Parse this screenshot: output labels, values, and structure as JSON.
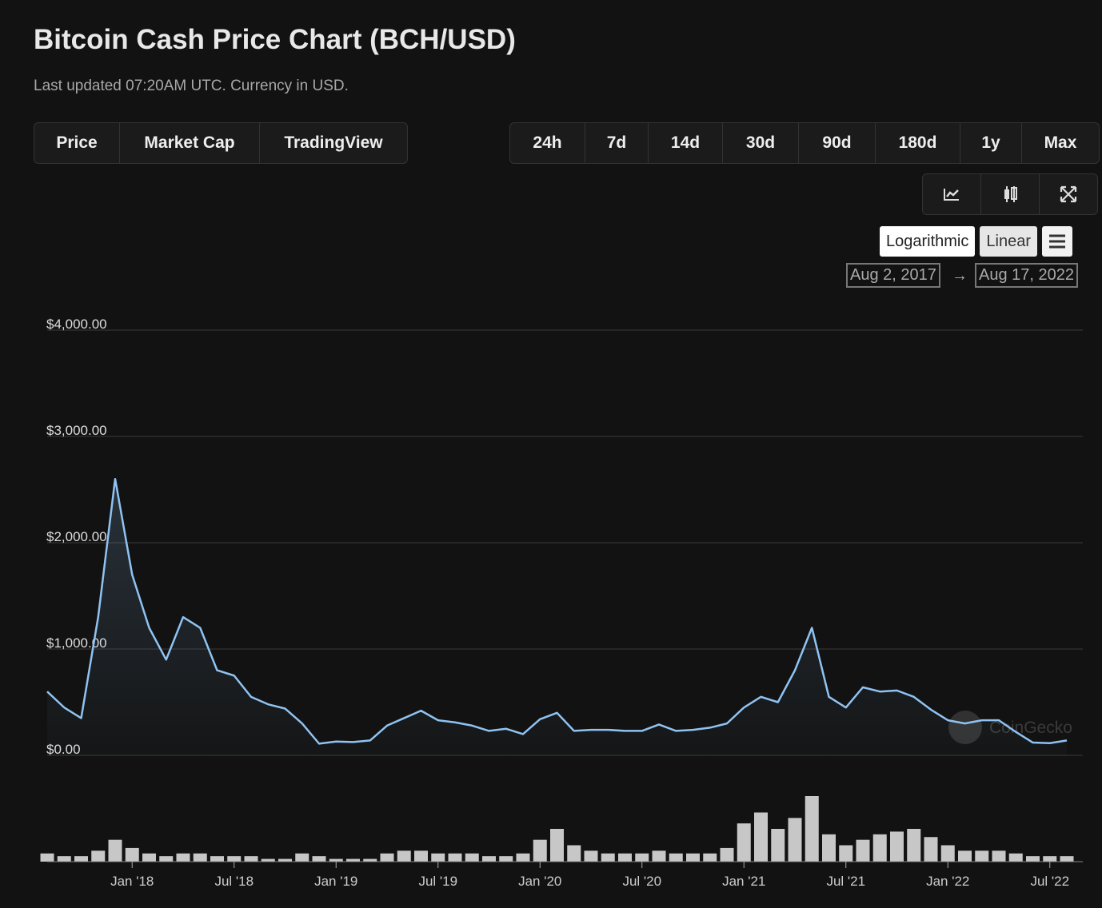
{
  "header": {
    "title": "Bitcoin Cash Price Chart (BCH/USD)",
    "subtitle": "Last updated 07:20AM UTC. Currency in USD."
  },
  "tabs": [
    "Price",
    "Market Cap",
    "TradingView"
  ],
  "ranges": [
    "24h",
    "7d",
    "14d",
    "30d",
    "90d",
    "180d",
    "1y",
    "Max"
  ],
  "scale_options": [
    "Logarithmic",
    "Linear"
  ],
  "date_range": {
    "from": "Aug 2, 2017",
    "to": "Aug 17, 2022"
  },
  "watermark": "CoinGecko",
  "chart_data": [
    {
      "type": "line",
      "color": "#8fc3f2",
      "x": [
        "2017-08",
        "2017-09",
        "2017-10",
        "2017-11",
        "2017-12",
        "2018-01",
        "2018-02",
        "2018-03",
        "2018-04",
        "2018-05",
        "2018-06",
        "2018-07",
        "2018-08",
        "2018-09",
        "2018-10",
        "2018-11",
        "2018-12",
        "2019-01",
        "2019-02",
        "2019-03",
        "2019-04",
        "2019-05",
        "2019-06",
        "2019-07",
        "2019-08",
        "2019-09",
        "2019-10",
        "2019-11",
        "2019-12",
        "2020-01",
        "2020-02",
        "2020-03",
        "2020-04",
        "2020-05",
        "2020-06",
        "2020-07",
        "2020-08",
        "2020-09",
        "2020-10",
        "2020-11",
        "2020-12",
        "2021-01",
        "2021-02",
        "2021-03",
        "2021-04",
        "2021-05",
        "2021-06",
        "2021-07",
        "2021-08",
        "2021-09",
        "2021-10",
        "2021-11",
        "2021-12",
        "2022-01",
        "2022-02",
        "2022-03",
        "2022-04",
        "2022-05",
        "2022-06",
        "2022-07",
        "2022-08"
      ],
      "values": [
        600,
        450,
        350,
        1300,
        2600,
        1700,
        1200,
        900,
        1300,
        1200,
        800,
        750,
        550,
        480,
        440,
        300,
        110,
        130,
        125,
        140,
        280,
        350,
        420,
        330,
        310,
        280,
        230,
        250,
        200,
        340,
        400,
        230,
        240,
        240,
        230,
        230,
        290,
        230,
        240,
        260,
        300,
        450,
        550,
        500,
        800,
        1200,
        550,
        450,
        640,
        600,
        610,
        550,
        430,
        330,
        300,
        330,
        330,
        220,
        120,
        115,
        140
      ],
      "xlim": [
        "2017-08",
        "2022-08"
      ],
      "xticks": [
        {
          "value": "2018-01",
          "label": "Jan '18"
        },
        {
          "value": "2018-07",
          "label": "Jul '18"
        },
        {
          "value": "2019-01",
          "label": "Jan '19"
        },
        {
          "value": "2019-07",
          "label": "Jul '19"
        },
        {
          "value": "2020-01",
          "label": "Jan '20"
        },
        {
          "value": "2020-07",
          "label": "Jul '20"
        },
        {
          "value": "2021-01",
          "label": "Jan '21"
        },
        {
          "value": "2021-07",
          "label": "Jul '21"
        },
        {
          "value": "2022-01",
          "label": "Jan '22"
        },
        {
          "value": "2022-07",
          "label": "Jul '22"
        }
      ],
      "ylim": [
        0,
        4000
      ],
      "yticks": [
        {
          "value": 0,
          "label": "$0.00"
        },
        {
          "value": 1000,
          "label": "$1,000.00"
        },
        {
          "value": 2000,
          "label": "$2,000.00"
        },
        {
          "value": 3000,
          "label": "$3,000.00"
        },
        {
          "value": 4000,
          "label": "$4,000.00"
        }
      ],
      "grid": true
    },
    {
      "type": "bar",
      "color": "#e8e8e8",
      "values": [
        3,
        2,
        2,
        4,
        8,
        5,
        3,
        2,
        3,
        3,
        2,
        2,
        2,
        1,
        1,
        3,
        2,
        1,
        1,
        1,
        3,
        4,
        4,
        3,
        3,
        3,
        2,
        2,
        3,
        8,
        12,
        6,
        4,
        3,
        3,
        3,
        4,
        3,
        3,
        3,
        5,
        14,
        18,
        12,
        16,
        24,
        10,
        6,
        8,
        10,
        11,
        12,
        9,
        6,
        4,
        4,
        4,
        3,
        2,
        2,
        2
      ]
    }
  ]
}
